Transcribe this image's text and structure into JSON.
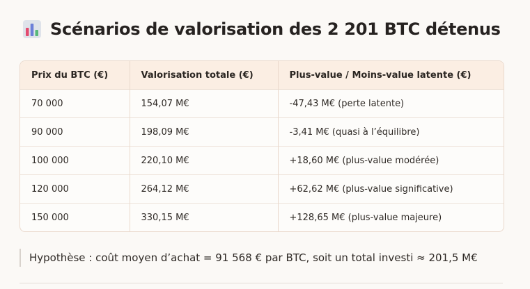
{
  "title": {
    "icon": "bar-chart-icon",
    "text": "Scénarios de valorisation des 2 201 BTC détenus"
  },
  "table": {
    "headers": [
      "Prix du BTC (€)",
      "Valorisation totale (€)",
      "Plus-value / Moins-value latente (€)"
    ],
    "rows": [
      [
        "70 000",
        "154,07 M€",
        "-47,43 M€ (perte latente)"
      ],
      [
        "90 000",
        "198,09 M€",
        "-3,41 M€ (quasi à l’équilibre)"
      ],
      [
        "100 000",
        "220,10 M€",
        "+18,60 M€ (plus-value modérée)"
      ],
      [
        "120 000",
        "264,12 M€",
        "+62,62 M€ (plus-value significative)"
      ],
      [
        "150 000",
        "330,15 M€",
        "+128,65 M€ (plus-value majeure)"
      ]
    ]
  },
  "note": "Hypothèse : coût moyen d’achat = 91 568 € par BTC, soit un total investi ≈ 201,5 M€",
  "colors": {
    "header_bg": "#fbeee3",
    "border": "#ead9cc",
    "background": "#fbf9f6"
  }
}
